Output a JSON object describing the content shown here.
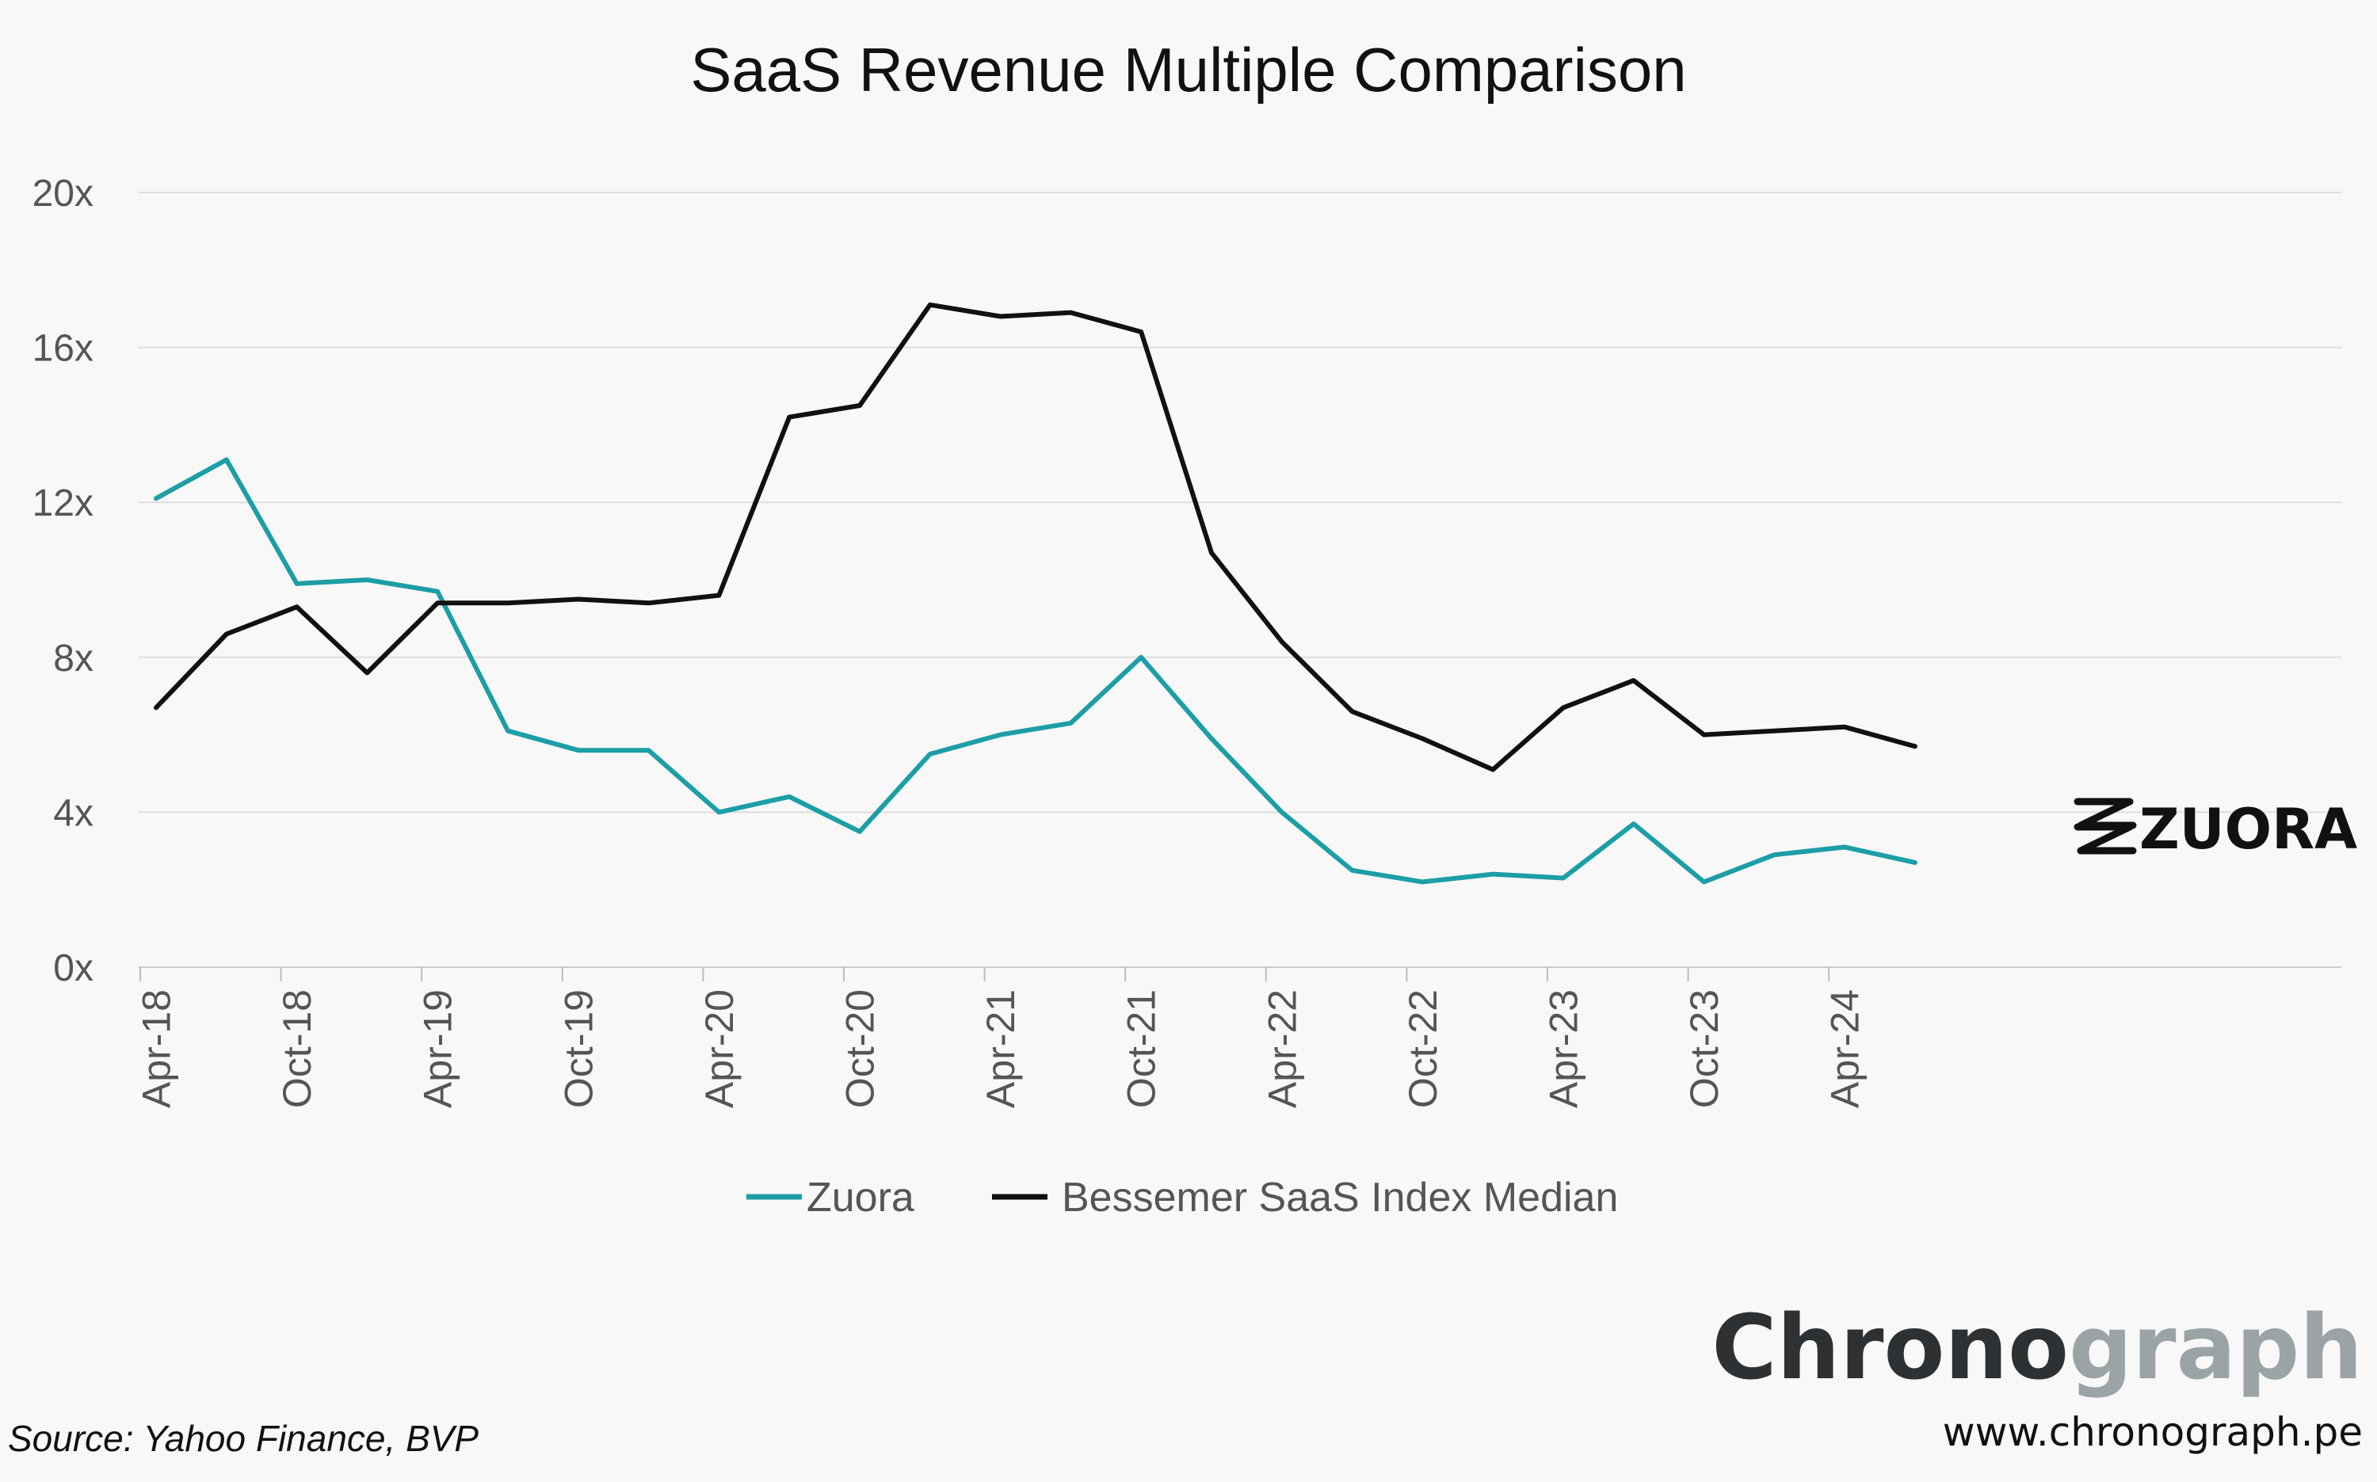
{
  "colors": {
    "zuora": "#1c9ea7",
    "bessemer": "#111111",
    "grid": "#dddddd",
    "background": "#f8f8f8"
  },
  "logo": {
    "icon": "zuora-z-logo-icon",
    "text": "ZUORA"
  },
  "source": "Source: Yahoo Finance, BVP",
  "brand": {
    "name_part1": "Chrono",
    "name_part2": "graph",
    "url": "www.chronograph.pe"
  },
  "chart_data": {
    "type": "line",
    "title": "SaaS Revenue Multiple Comparison",
    "xlabel": "",
    "ylabel": "",
    "ylim": [
      0,
      20
    ],
    "yticks": [
      "0x",
      "4x",
      "8x",
      "12x",
      "16x",
      "20x"
    ],
    "ytick_values": [
      0,
      4,
      8,
      12,
      16,
      20
    ],
    "x": [
      "Apr-18",
      "Jul-18",
      "Oct-18",
      "Jan-19",
      "Apr-19",
      "Jul-19",
      "Oct-19",
      "Jan-20",
      "Apr-20",
      "Jul-20",
      "Oct-20",
      "Jan-21",
      "Apr-21",
      "Jul-21",
      "Oct-21",
      "Jan-22",
      "Apr-22",
      "Jul-22",
      "Oct-22",
      "Jan-23",
      "Apr-23",
      "Jul-23",
      "Oct-23",
      "Jan-24",
      "Apr-24",
      "Jul-24"
    ],
    "xtick_labels": [
      "Apr-18",
      "Oct-18",
      "Apr-19",
      "Oct-19",
      "Apr-20",
      "Oct-20",
      "Apr-21",
      "Oct-21",
      "Apr-22",
      "Oct-22",
      "Apr-23",
      "Oct-23",
      "Apr-24"
    ],
    "grid": true,
    "legend_position": "bottom-center",
    "series": [
      {
        "name": "Zuora",
        "values": [
          12.1,
          13.1,
          9.9,
          10.0,
          9.7,
          6.1,
          5.6,
          5.6,
          4.0,
          4.4,
          3.5,
          5.5,
          6.0,
          6.3,
          8.0,
          5.9,
          4.0,
          2.5,
          2.2,
          2.4,
          2.3,
          3.7,
          2.2,
          2.9,
          3.1,
          2.7
        ]
      },
      {
        "name": "Bessemer SaaS Index Median",
        "values": [
          6.7,
          8.6,
          9.3,
          7.6,
          9.4,
          9.4,
          9.5,
          9.4,
          9.6,
          14.2,
          14.5,
          17.1,
          16.8,
          16.9,
          16.4,
          10.7,
          8.4,
          6.6,
          5.9,
          5.1,
          6.7,
          7.4,
          6.0,
          6.1,
          6.2,
          5.7
        ]
      }
    ]
  }
}
